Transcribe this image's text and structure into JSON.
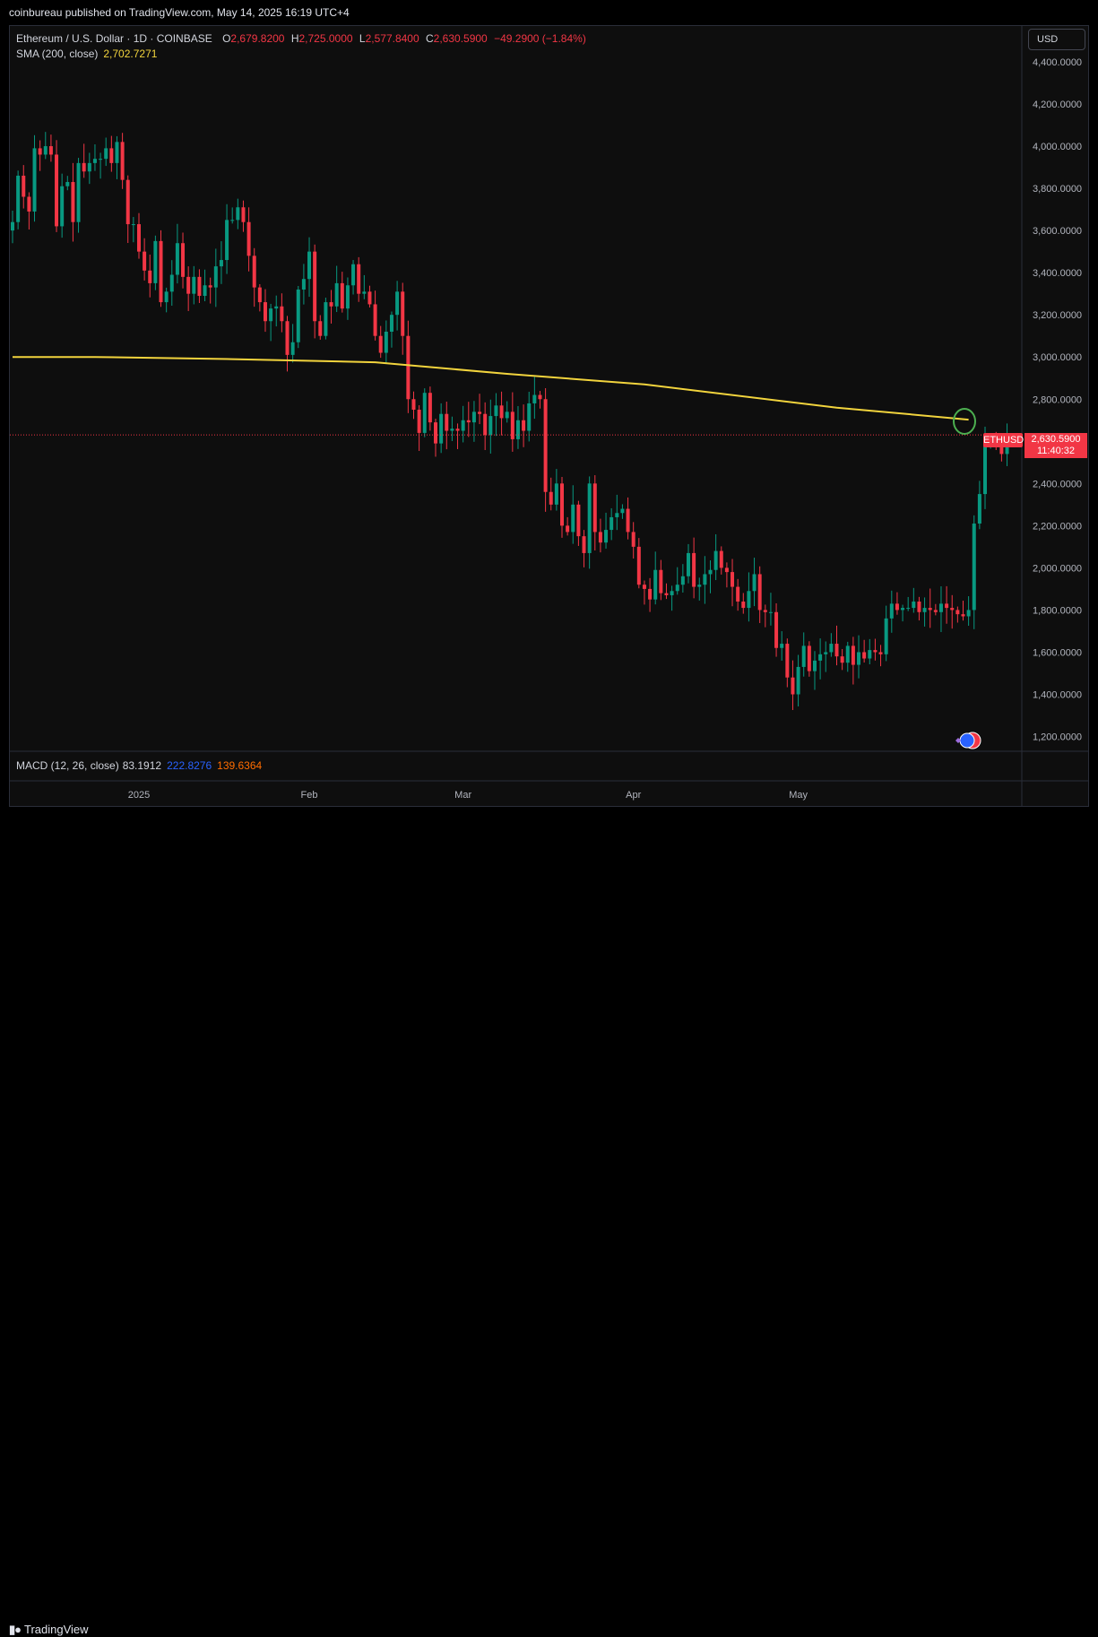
{
  "header": {
    "publisher": "coinbureau published on TradingView.com, May 14, 2025 16:19 UTC+4"
  },
  "legend": {
    "symbol": "Ethereum / U.S. Dollar · 1D · COINBASE",
    "open_key": "O",
    "open": "2,679.8200",
    "high_key": "H",
    "high": "2,725.0000",
    "low_key": "L",
    "low": "2,577.8400",
    "close_key": "C",
    "close": "2,630.5900",
    "change": "−49.2900 (−1.84%)",
    "sma_label": "SMA (200, close)",
    "sma_value": "2,702.7271"
  },
  "currency_button": "USD",
  "macd": {
    "label": "MACD (12, 26, close)",
    "v1": "83.1912",
    "v2": "222.8276",
    "v3": "139.6364"
  },
  "price_badge": {
    "ticker": "ETHUSD",
    "price": "2,630.5900",
    "countdown": "11:40:32"
  },
  "footer": {
    "brand": "TradingView"
  },
  "colors": {
    "up": "#089981",
    "down": "#f23645",
    "sma": "#f2d43d",
    "annotation": "#4caf50",
    "grid": "#1c1f26",
    "background": "#0e0e0e"
  },
  "icons": [
    "tradingview-logo-icon",
    "us-flag-icon",
    "event-marker-icon"
  ],
  "chart_data": {
    "type": "candlestick",
    "title": "Ethereum / U.S. Dollar · 1D · COINBASE",
    "ylim": [
      1130,
      4570
    ],
    "y_ticks": [
      {
        "value": 4400,
        "label": "4,400.0000"
      },
      {
        "value": 4200,
        "label": "4,200.0000"
      },
      {
        "value": 4000,
        "label": "4,000.0000"
      },
      {
        "value": 3800,
        "label": "3,800.0000"
      },
      {
        "value": 3600,
        "label": "3,600.0000"
      },
      {
        "value": 3400,
        "label": "3,400.0000"
      },
      {
        "value": 3200,
        "label": "3,200.0000"
      },
      {
        "value": 3000,
        "label": "3,000.0000"
      },
      {
        "value": 2800,
        "label": "2,800.0000"
      },
      {
        "value": 2600,
        "label": "2,600.0000"
      },
      {
        "value": 2400,
        "label": "2,400.0000"
      },
      {
        "value": 2200,
        "label": "2,200.0000"
      },
      {
        "value": 2000,
        "label": "2,000.0000"
      },
      {
        "value": 1800,
        "label": "1,800.0000"
      },
      {
        "value": 1600,
        "label": "1,600.0000"
      },
      {
        "value": 1400,
        "label": "1,400.0000"
      },
      {
        "value": 1200,
        "label": "1,200.0000"
      }
    ],
    "x_ticks": [
      {
        "index": 23,
        "label": "2025"
      },
      {
        "index": 54,
        "label": "Feb"
      },
      {
        "index": 82,
        "label": "Mar"
      },
      {
        "index": 113,
        "label": "Apr"
      },
      {
        "index": 143,
        "label": "May"
      }
    ],
    "closes": [
      3640,
      3860,
      3760,
      3690,
      3990,
      3960,
      4000,
      3960,
      3620,
      3810,
      3830,
      3640,
      3920,
      3880,
      3920,
      3940,
      3940,
      3990,
      3920,
      4020,
      3840,
      3630,
      3630,
      3500,
      3410,
      3350,
      3550,
      3260,
      3310,
      3390,
      3540,
      3380,
      3300,
      3380,
      3290,
      3340,
      3330,
      3430,
      3460,
      3650,
      3650,
      3710,
      3640,
      3480,
      3330,
      3260,
      3170,
      3230,
      3240,
      3170,
      3010,
      3070,
      3320,
      3370,
      3500,
      3170,
      3100,
      3260,
      3240,
      3350,
      3230,
      3340,
      3440,
      3300,
      3310,
      3250,
      3100,
      3020,
      3120,
      3200,
      3310,
      3100,
      2800,
      2750,
      2640,
      2830,
      2690,
      2590,
      2730,
      2650,
      2660,
      2650,
      2700,
      2690,
      2740,
      2730,
      2630,
      2720,
      2770,
      2710,
      2740,
      2610,
      2700,
      2650,
      2780,
      2820,
      2800,
      2360,
      2300,
      2400,
      2200,
      2170,
      2300,
      2150,
      2070,
      2400,
      2170,
      2120,
      2180,
      2240,
      2260,
      2280,
      2170,
      2100,
      1920,
      1900,
      1850,
      1990,
      1880,
      1870,
      1890,
      1920,
      1960,
      2070,
      1910,
      1920,
      1970,
      1990,
      2080,
      2000,
      1980,
      1910,
      1840,
      1810,
      1890,
      1970,
      1800,
      1790,
      1790,
      1620,
      1640,
      1480,
      1400,
      1530,
      1630,
      1510,
      1560,
      1590,
      1600,
      1640,
      1580,
      1550,
      1630,
      1540,
      1600,
      1570,
      1610,
      1600,
      1590,
      1760,
      1830,
      1800,
      1810,
      1810,
      1840,
      1790,
      1810,
      1800,
      1790,
      1830,
      1810,
      1800,
      1780,
      1770,
      1800,
      2210,
      2350,
      2600,
      2620,
      2600,
      2540,
      2630
    ]
  }
}
